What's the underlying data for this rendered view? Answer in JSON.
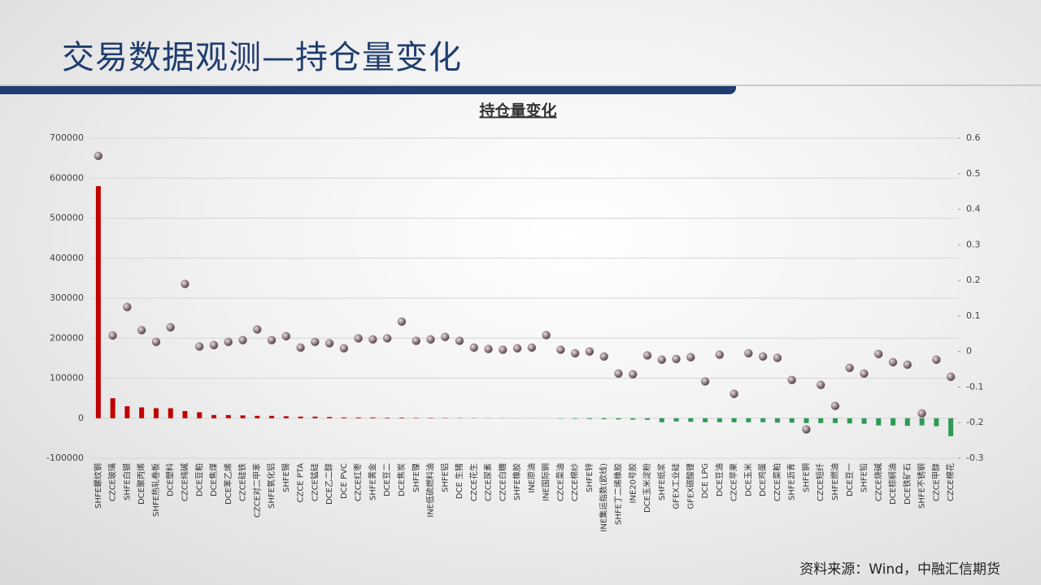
{
  "header": {
    "title": "交易数据观测—持仓量变化"
  },
  "footer": {
    "source": "资料来源：Wind，中融汇信期货"
  },
  "chart_data": {
    "type": "bar",
    "title": "持仓量变化",
    "categories": [
      "SHFE螺纹钢",
      "CZCE玻璃",
      "SHFE白银",
      "DCE聚丙烯",
      "SHFE热轧卷板",
      "DCE塑料",
      "CZCE纯碱",
      "DCE豆粕",
      "DCE焦煤",
      "DCE苯乙烯",
      "CZCE硅铁",
      "CZCE对二甲苯",
      "SHFE氧化铝",
      "SHFE锡",
      "CZCE PTA",
      "CZCE锰硅",
      "DCE乙二醇",
      "DCE PVC",
      "CZCE红枣",
      "SHFE黄金",
      "DCE豆二",
      "DCE焦炭",
      "SHFE镍",
      "INE低硫燃料油",
      "SHFE铝",
      "DCE 生猪",
      "CZCE花生",
      "CZCE尿素",
      "CZCE白糖",
      "SHFE橡胶",
      "INE原油",
      "INE国际铜",
      "CZCE菜油",
      "CZCE棉纱",
      "SHFE锌",
      "INE集运指数(欧线)",
      "SHFE丁二烯橡胶",
      "INE20号胶",
      "DCE玉米淀粉",
      "SHFE纸浆",
      "GFEX工业硅",
      "GFEX碳酸锂",
      "DCE LPG",
      "DCE豆油",
      "CZCE苹果",
      "DCE玉米",
      "DCE鸡蛋",
      "CZCE菜粕",
      "SHFE沥青",
      "SHFE铜",
      "CZCE短纤",
      "SHFE燃油",
      "DCE豆一",
      "SHFE铅",
      "CZCE烧碱",
      "DCE棕榈油",
      "DCE铁矿石",
      "SHFE不锈钢",
      "CZCE甲醇",
      "CZCE棉花"
    ],
    "series": [
      {
        "type": "bar",
        "axis": "y",
        "color": "#c00000",
        "negative_color": "#2e9a55",
        "values": [
          580000,
          50000,
          30000,
          27000,
          25000,
          25000,
          18000,
          15000,
          8000,
          8000,
          7000,
          6000,
          6000,
          5000,
          4000,
          4000,
          3000,
          2000,
          2000,
          2000,
          1500,
          1500,
          1000,
          1000,
          800,
          600,
          500,
          400,
          300,
          200,
          100,
          0,
          -1000,
          -1500,
          -2000,
          -2500,
          -3000,
          -3500,
          -4000,
          -10000,
          -8000,
          -9000,
          -10000,
          -10000,
          -10000,
          -10000,
          -10000,
          -11000,
          -11000,
          -12000,
          -12000,
          -12000,
          -13000,
          -14000,
          -18000,
          -18000,
          -19000,
          -18000,
          -20000,
          -45000
        ]
      },
      {
        "type": "scatter",
        "axis": "y2",
        "color": "#8c7880",
        "values": [
          0.55,
          0.045,
          0.125,
          0.06,
          0.027,
          0.068,
          0.19,
          0.014,
          0.018,
          0.027,
          0.032,
          0.062,
          0.032,
          0.043,
          0.011,
          0.027,
          0.023,
          0.009,
          0.037,
          0.034,
          0.037,
          0.084,
          0.03,
          0.034,
          0.041,
          0.03,
          0.011,
          0.007,
          0.005,
          0.009,
          0.011,
          0.046,
          0.005,
          -0.005,
          0,
          -0.014,
          -0.062,
          -0.064,
          -0.011,
          -0.023,
          -0.021,
          -0.016,
          -0.084,
          -0.009,
          -0.119,
          -0.005,
          -0.014,
          -0.018,
          -0.08,
          -0.219,
          -0.094,
          -0.153,
          -0.046,
          -0.062,
          -0.007,
          -0.03,
          -0.037,
          -0.174,
          -0.023,
          -0.071
        ]
      }
    ],
    "ylim": [
      -100000,
      700000
    ],
    "yticks": [
      -100000,
      0,
      100000,
      200000,
      300000,
      400000,
      500000,
      600000,
      700000
    ],
    "y2lim": [
      -0.3,
      0.6
    ],
    "y2ticks": [
      -0.3,
      -0.2,
      -0.1,
      0,
      0.1,
      0.2,
      0.3,
      0.4,
      0.5,
      0.6
    ],
    "grid": true
  }
}
